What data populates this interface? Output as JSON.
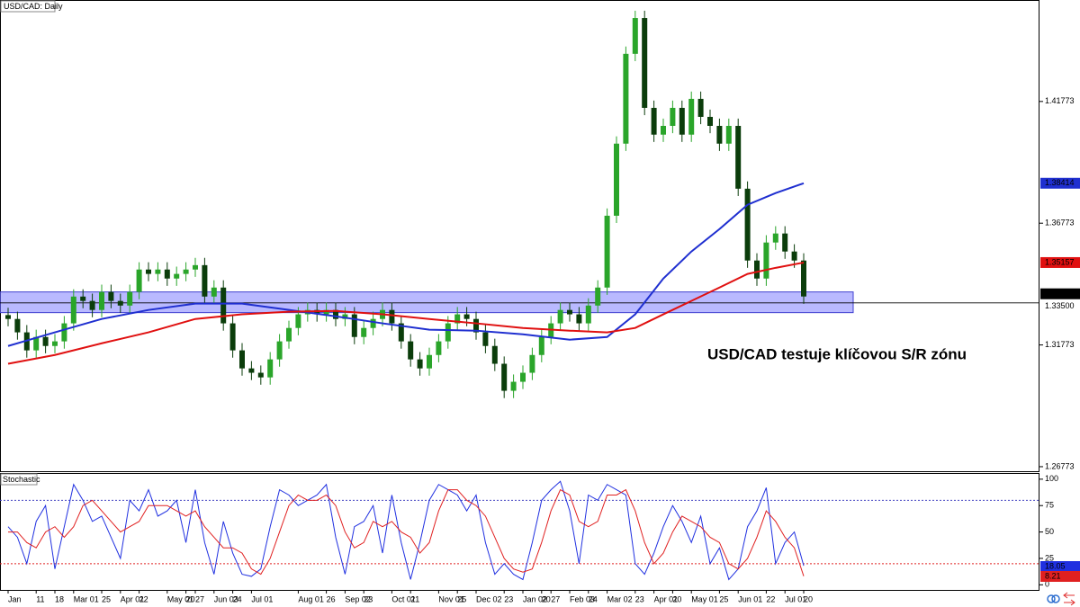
{
  "chart_data": [
    {
      "type": "candlestick",
      "title": "USD/CAD: Daily",
      "annotation": "USD/CAD testuje klíčovou S/R zónu",
      "categories": [
        "Jan",
        null,
        null,
        "11",
        null,
        "18",
        null,
        "Mar 01",
        null,
        null,
        "25",
        null,
        "Apr 01",
        null,
        "22",
        null,
        null,
        "May 01",
        null,
        "20",
        "27",
        null,
        "Jun 03",
        null,
        "24",
        null,
        "Jul 01",
        null,
        null,
        null,
        null,
        "Aug 01",
        null,
        null,
        "26",
        null,
        "Sep 02",
        null,
        "23",
        null,
        null,
        "Oct 01",
        null,
        "21",
        null,
        null,
        "Nov 01",
        null,
        "25",
        null,
        "Dec 02",
        null,
        null,
        "23",
        null,
        "Jan 02",
        null,
        "20",
        "27",
        null,
        "Feb 03",
        null,
        "24",
        null,
        "Mar 02",
        null,
        null,
        "23",
        null,
        "Apr 01",
        null,
        "20",
        null,
        "May 01",
        null,
        null,
        "25",
        null,
        "Jun 01",
        null,
        null,
        "22",
        null,
        "Jul 01",
        null,
        "20"
      ],
      "open": [
        1.33,
        1.3284,
        1.3229,
        1.3155,
        1.321,
        1.3173,
        1.3192,
        1.3266,
        1.3376,
        1.3358,
        1.3321,
        1.3395,
        1.3358,
        1.3339,
        1.3395,
        1.3487,
        1.3469,
        1.3487,
        1.345,
        1.3469,
        1.3487,
        1.3505,
        1.3376,
        1.3413,
        1.3266,
        1.3155,
        1.3081,
        1.3063,
        1.3044,
        1.3118,
        1.3192,
        1.3247,
        1.3303,
        1.3321,
        1.3303,
        1.3321,
        1.3284,
        1.3303,
        1.321,
        1.3247,
        1.3284,
        1.3321,
        1.3266,
        1.3192,
        1.3118,
        1.3081,
        1.3136,
        1.3192,
        1.3266,
        1.3303,
        1.3284,
        1.3229,
        1.3173,
        1.31,
        1.2989,
        1.3026,
        1.3063,
        1.3136,
        1.321,
        1.3266,
        1.3321,
        1.3303,
        1.3266,
        1.3339,
        1.3413,
        1.3708,
        1.4004,
        1.4373,
        1.452,
        1.4151,
        1.4041,
        1.4077,
        1.4151,
        1.4041,
        1.4188,
        1.4114,
        1.4077,
        1.4004,
        1.4077,
        1.3819,
        1.3524,
        1.345,
        1.3598,
        1.3635,
        1.3561,
        1.3524
      ],
      "high": [
        1.333,
        1.3314,
        1.3259,
        1.324,
        1.324,
        1.3222,
        1.3296,
        1.3406,
        1.3406,
        1.3388,
        1.3425,
        1.3425,
        1.3388,
        1.3425,
        1.3517,
        1.3517,
        1.3517,
        1.3517,
        1.3499,
        1.3517,
        1.3535,
        1.3535,
        1.3443,
        1.3443,
        1.3296,
        1.3185,
        1.3111,
        1.3093,
        1.3148,
        1.3222,
        1.3277,
        1.3333,
        1.3351,
        1.3351,
        1.3351,
        1.3351,
        1.3333,
        1.3333,
        1.3277,
        1.3314,
        1.3351,
        1.3351,
        1.3296,
        1.3222,
        1.3148,
        1.3166,
        1.3222,
        1.3296,
        1.3333,
        1.3333,
        1.3314,
        1.3259,
        1.3203,
        1.313,
        1.3056,
        1.3093,
        1.3166,
        1.324,
        1.3296,
        1.3351,
        1.3351,
        1.3333,
        1.3369,
        1.3443,
        1.3738,
        1.4034,
        1.4403,
        1.455,
        1.455,
        1.4181,
        1.4107,
        1.4181,
        1.4181,
        1.4218,
        1.4218,
        1.4144,
        1.4107,
        1.4107,
        1.4107,
        1.3849,
        1.3554,
        1.3628,
        1.3665,
        1.3665,
        1.3591,
        1.3554
      ],
      "low": [
        1.3254,
        1.3199,
        1.3125,
        1.3125,
        1.3143,
        1.3143,
        1.3162,
        1.3236,
        1.3328,
        1.3291,
        1.3291,
        1.3328,
        1.3309,
        1.3309,
        1.3365,
        1.3439,
        1.3439,
        1.342,
        1.342,
        1.3439,
        1.3457,
        1.3346,
        1.3346,
        1.3236,
        1.3125,
        1.3051,
        1.3033,
        1.3014,
        1.3014,
        1.3088,
        1.3162,
        1.3217,
        1.3273,
        1.3273,
        1.3273,
        1.3254,
        1.3254,
        1.318,
        1.318,
        1.3217,
        1.3254,
        1.3236,
        1.3162,
        1.3088,
        1.3051,
        1.3051,
        1.3106,
        1.3162,
        1.3236,
        1.3254,
        1.3199,
        1.3143,
        1.307,
        1.2959,
        1.2959,
        1.2996,
        1.3033,
        1.3106,
        1.318,
        1.3236,
        1.3273,
        1.3236,
        1.3236,
        1.3309,
        1.3383,
        1.3678,
        1.3974,
        1.4343,
        1.4121,
        1.4011,
        1.4011,
        1.4047,
        1.4011,
        1.4011,
        1.4084,
        1.4047,
        1.3974,
        1.3974,
        1.3789,
        1.3494,
        1.342,
        1.342,
        1.3568,
        1.3531,
        1.3494,
        1.3346
      ],
      "close": [
        1.3284,
        1.3229,
        1.3155,
        1.321,
        1.3173,
        1.3192,
        1.3266,
        1.3376,
        1.3358,
        1.3321,
        1.3395,
        1.3358,
        1.3339,
        1.3395,
        1.3487,
        1.3469,
        1.3487,
        1.345,
        1.3469,
        1.3487,
        1.3505,
        1.3376,
        1.3413,
        1.3266,
        1.3155,
        1.3081,
        1.3063,
        1.3044,
        1.3118,
        1.3192,
        1.3247,
        1.3303,
        1.3321,
        1.3303,
        1.3321,
        1.3284,
        1.3303,
        1.321,
        1.3247,
        1.3284,
        1.3321,
        1.3266,
        1.3192,
        1.3118,
        1.3081,
        1.3136,
        1.3192,
        1.3266,
        1.3303,
        1.3284,
        1.3229,
        1.3173,
        1.31,
        1.2989,
        1.3026,
        1.3063,
        1.3136,
        1.321,
        1.3266,
        1.3321,
        1.3303,
        1.3266,
        1.3339,
        1.3413,
        1.3708,
        1.4004,
        1.4373,
        1.452,
        1.4151,
        1.4041,
        1.4077,
        1.4151,
        1.4041,
        1.4188,
        1.4114,
        1.4077,
        1.4004,
        1.4077,
        1.3819,
        1.3524,
        1.345,
        1.3598,
        1.3635,
        1.3561,
        1.3524,
        1.33763
      ],
      "up_color": "#2aa52a",
      "down_color": "#0b3d0b",
      "overlays": [
        {
          "color": "#1f2fd0",
          "x": [
            0,
            5,
            10,
            15,
            20,
            25,
            30,
            35,
            40,
            45,
            50,
            55,
            60,
            64,
            67,
            70,
            73,
            76,
            79,
            82,
            85
          ],
          "values": [
            1.3173,
            1.3229,
            1.3284,
            1.3321,
            1.3347,
            1.3347,
            1.3321,
            1.3295,
            1.3266,
            1.324,
            1.3236,
            1.3221,
            1.3199,
            1.321,
            1.3303,
            1.345,
            1.3561,
            1.3653,
            1.3753,
            1.3801,
            1.38414
          ]
        },
        {
          "color": "#e01010",
          "x": [
            0,
            5,
            10,
            15,
            20,
            25,
            30,
            35,
            40,
            45,
            50,
            55,
            60,
            64,
            67,
            70,
            73,
            76,
            79,
            82,
            85
          ],
          "values": [
            1.31,
            1.3136,
            1.3184,
            1.3229,
            1.3284,
            1.3303,
            1.3314,
            1.3317,
            1.3303,
            1.3284,
            1.3266,
            1.3247,
            1.3236,
            1.3229,
            1.3247,
            1.3303,
            1.3358,
            1.3413,
            1.3469,
            1.3494,
            1.35157
          ]
        }
      ],
      "zone": [
        1.331,
        1.3395
      ],
      "zone_color": "#8080ff",
      "hline": {
        "value": 1.335,
        "label": "1.33500"
      },
      "ylim": [
        1.2655,
        1.4594
      ],
      "yticks": [
        1.26773,
        1.31773,
        1.36773,
        1.41773
      ]
    },
    {
      "type": "line",
      "title": "Stochastic",
      "series": [
        {
          "color": "#2030e0",
          "values": [
            55,
            45,
            20,
            60,
            75,
            15,
            55,
            95,
            80,
            60,
            65,
            45,
            25,
            80,
            70,
            90,
            65,
            70,
            80,
            40,
            90,
            40,
            10,
            60,
            30,
            10,
            8,
            15,
            55,
            90,
            85,
            75,
            80,
            85,
            95,
            45,
            10,
            55,
            60,
            75,
            30,
            85,
            40,
            5,
            40,
            80,
            95,
            90,
            85,
            70,
            85,
            40,
            10,
            20,
            10,
            5,
            40,
            80,
            90,
            98,
            70,
            20,
            85,
            80,
            95,
            90,
            85,
            20,
            10,
            30,
            55,
            75,
            60,
            40,
            65,
            20,
            35,
            5,
            15,
            55,
            70,
            92,
            20,
            40,
            50,
            18.05
          ]
        },
        {
          "color": "#e02020",
          "values": [
            50,
            50,
            40,
            35,
            50,
            55,
            45,
            55,
            75,
            80,
            70,
            60,
            50,
            55,
            60,
            75,
            75,
            75,
            70,
            65,
            70,
            55,
            45,
            35,
            35,
            30,
            15,
            10,
            25,
            50,
            75,
            85,
            80,
            80,
            85,
            75,
            50,
            35,
            40,
            60,
            55,
            60,
            50,
            45,
            30,
            40,
            70,
            90,
            90,
            80,
            75,
            65,
            45,
            25,
            15,
            12,
            15,
            40,
            70,
            90,
            85,
            60,
            55,
            60,
            85,
            85,
            90,
            70,
            40,
            20,
            30,
            50,
            65,
            60,
            55,
            45,
            40,
            20,
            15,
            25,
            45,
            70,
            60,
            45,
            35,
            8.21
          ]
        }
      ],
      "levels": [
        80,
        20
      ],
      "level_colors": [
        "#4040c0",
        "#e02020"
      ],
      "ylim": [
        -4,
        105
      ],
      "yticks": [
        100,
        75,
        50,
        25,
        0
      ]
    }
  ]
}
